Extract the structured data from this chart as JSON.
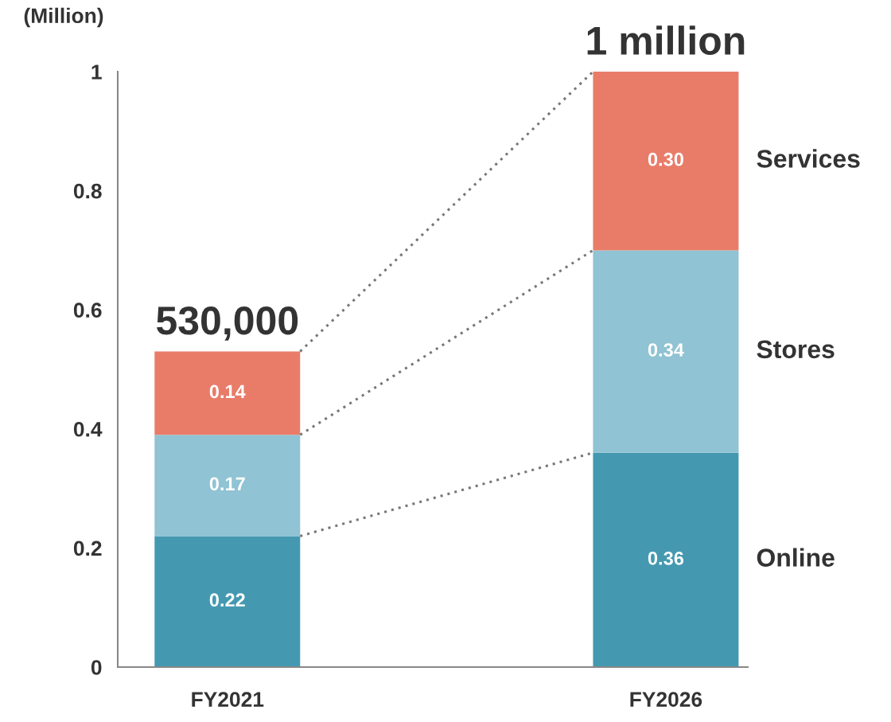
{
  "chart_data": {
    "type": "bar",
    "stacked": true,
    "ylabel": "(Million)",
    "categories": [
      "FY2021",
      "FY2026"
    ],
    "series": [
      {
        "name": "Online",
        "color": "#4499b1",
        "values": [
          0.22,
          0.36
        ],
        "value_labels": [
          "0.22",
          "0.36"
        ]
      },
      {
        "name": "Stores",
        "color": "#90c3d3",
        "values": [
          0.17,
          0.34
        ],
        "value_labels": [
          "0.17",
          "0.34"
        ]
      },
      {
        "name": "Services",
        "color": "#e97c69",
        "values": [
          0.14,
          0.3
        ],
        "value_labels": [
          "0.14",
          "0.30"
        ]
      }
    ],
    "totals": [
      "530,000",
      "1 million"
    ],
    "ylim": [
      0,
      1
    ],
    "yticks": [
      0,
      0.2,
      0.4,
      0.6,
      0.8,
      1
    ],
    "grid": false,
    "legend": false
  }
}
